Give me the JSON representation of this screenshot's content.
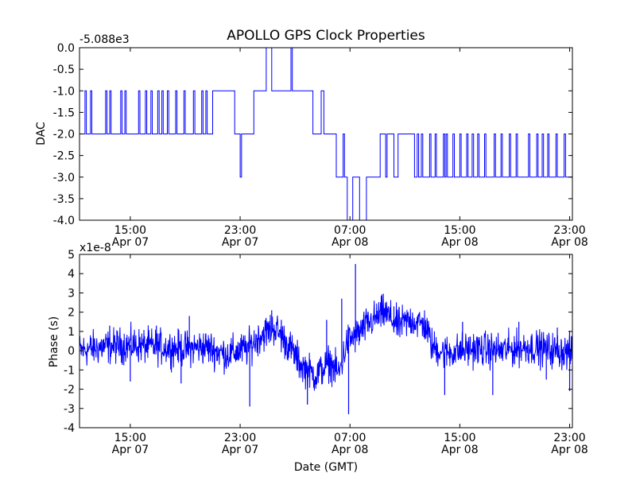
{
  "title": "APOLLO GPS Clock Properties",
  "chart_data": [
    {
      "type": "line",
      "ylabel": "DAC",
      "offset_label": "-5.088e3",
      "ylim": [
        -4.0,
        0.0
      ],
      "yticks": [
        "0.0",
        "-0.5",
        "-1.0",
        "-1.5",
        "-2.0",
        "-2.5",
        "-3.0",
        "-3.5",
        "-4.0"
      ],
      "ytick_values": [
        0,
        -0.5,
        -1,
        -1.5,
        -2,
        -2.5,
        -3,
        -3.5,
        -4
      ],
      "xlim_hours": [
        11.3,
        47.2
      ],
      "xticks_hours": [
        15,
        23,
        31,
        39,
        47
      ],
      "xtick_time": [
        "15:00",
        "23:00",
        "07:00",
        "15:00",
        "23:00"
      ],
      "xtick_date": [
        "Apr 07",
        "Apr 07",
        "Apr 08",
        "Apr 08",
        "Apr 08"
      ],
      "line_color": "#0000ff",
      "series": [
        {
          "name": "DAC",
          "x_hours": [
            11.3,
            11.7,
            11.8,
            12.1,
            12.2,
            13.2,
            13.3,
            13.5,
            13.6,
            14.3,
            14.4,
            14.6,
            14.7,
            15.6,
            15.7,
            16.1,
            16.2,
            16.5,
            16.6,
            17.0,
            17.1,
            17.3,
            17.4,
            17.7,
            17.8,
            18.3,
            18.4,
            18.9,
            19.0,
            19.6,
            19.7,
            20.2,
            20.3,
            20.5,
            20.6,
            21.0,
            21.1,
            22.5,
            22.6,
            22.8,
            23.0,
            23.1,
            23.3,
            23.4,
            23.9,
            24.0,
            24.1,
            24.2,
            24.9,
            25.0,
            25.3,
            26.4,
            26.7,
            26.8,
            27.5,
            27.6,
            28.3,
            28.4,
            28.9,
            29.1,
            29.9,
            30.0,
            30.4,
            30.5,
            30.6,
            30.7,
            30.8,
            31.2,
            31.3,
            31.7,
            32.0,
            32.2,
            33.1,
            33.2,
            33.6,
            33.7,
            33.8,
            34.2,
            34.5,
            35.6,
            35.7,
            35.9,
            36.0,
            36.2,
            36.3,
            36.8,
            36.9,
            37.2,
            37.3,
            37.8,
            37.9,
            38.0,
            38.1,
            38.5,
            38.6,
            39.0,
            39.1,
            39.5,
            39.6,
            39.9,
            40.0,
            40.3,
            40.4,
            40.8,
            40.9,
            41.5,
            41.6,
            42.0,
            42.1,
            42.6,
            42.7,
            43.1,
            43.2,
            44.0,
            44.1,
            44.6,
            44.7,
            45.0,
            45.1,
            45.4,
            45.5,
            46.0,
            46.1,
            46.6,
            46.7,
            47.2
          ],
          "y": [
            -2,
            -1,
            -2,
            -1,
            -2,
            -1,
            -2,
            -1,
            -2,
            -1,
            -2,
            -1,
            -2,
            -1,
            -2,
            -1,
            -2,
            -1,
            -2,
            -1,
            -2,
            -1,
            -2,
            -1,
            -2,
            -1,
            -2,
            -1,
            -2,
            -1,
            -2,
            -1,
            -2,
            -1,
            -2,
            -1,
            -1,
            -1,
            -2,
            -2,
            -3,
            -2,
            -2,
            -2,
            -2,
            -1,
            -1,
            -1,
            0,
            0,
            -1,
            -1,
            0,
            -1,
            -1,
            -1,
            -2,
            -2,
            -1,
            -2,
            -2,
            -3,
            -3,
            -2,
            -3,
            -3,
            -4,
            -3,
            -3,
            -4,
            -4,
            -3,
            -3,
            -2,
            -3,
            -2,
            -2,
            -3,
            -2,
            -2,
            -3,
            -2,
            -3,
            -2,
            -3,
            -2,
            -3,
            -2,
            -3,
            -2,
            -3,
            -2,
            -3,
            -2,
            -3,
            -2,
            -3,
            -2,
            -3,
            -2,
            -3,
            -2,
            -3,
            -2,
            -3,
            -2,
            -3,
            -2,
            -3,
            -2,
            -3,
            -2,
            -3,
            -2,
            -3,
            -2,
            -3,
            -2,
            -3,
            -2,
            -3,
            -2,
            -3,
            -2,
            -3,
            -3
          ]
        }
      ]
    },
    {
      "type": "line",
      "ylabel": "Phase (s)",
      "xlabel": "Date (GMT)",
      "offset_label": "x1e-8",
      "ylim": [
        -4,
        5
      ],
      "yticks": [
        "5",
        "4",
        "3",
        "2",
        "1",
        "0",
        "-1",
        "-2",
        "-3",
        "-4"
      ],
      "ytick_values": [
        5,
        4,
        3,
        2,
        1,
        0,
        -1,
        -2,
        -3,
        -4
      ],
      "xlim_hours": [
        11.3,
        47.2
      ],
      "xticks_hours": [
        15,
        23,
        31,
        39,
        47
      ],
      "xtick_time": [
        "15:00",
        "23:00",
        "07:00",
        "15:00",
        "23:00"
      ],
      "xtick_date": [
        "Apr 07",
        "Apr 07",
        "Apr 08",
        "Apr 08",
        "Apr 08"
      ],
      "line_color": "#0000ff",
      "series": [
        {
          "name": "Phase",
          "trend_x_hours": [
            11.3,
            13,
            15,
            17,
            19,
            20.5,
            22,
            23.5,
            24.5,
            25.5,
            26.5,
            27.5,
            28.5,
            29.5,
            30.2,
            30.8,
            31.5,
            32.5,
            33.5,
            34.5,
            35.5,
            36.5,
            37,
            38,
            40,
            42,
            44,
            46,
            47.2
          ],
          "trend_y": [
            0,
            0.2,
            0.3,
            0.2,
            0.1,
            0.2,
            -0.2,
            0.1,
            0.8,
            1.2,
            0.3,
            -0.8,
            -1.3,
            -0.6,
            -1.2,
            0.5,
            0.8,
            1.5,
            2.0,
            1.3,
            1.6,
            1.3,
            0.2,
            -0.1,
            0.1,
            0.0,
            0.2,
            0.0,
            -0.1
          ],
          "noise_amplitude": 0.45,
          "spikes": [
            {
              "x_hour": 13.5,
              "y": 1.3
            },
            {
              "x_hour": 15.0,
              "y": -1.6
            },
            {
              "x_hour": 16.9,
              "y": 1.3
            },
            {
              "x_hour": 18.7,
              "y": -1.7
            },
            {
              "x_hour": 19.3,
              "y": 1.8
            },
            {
              "x_hour": 23.7,
              "y": -2.9
            },
            {
              "x_hour": 25.3,
              "y": 2.1
            },
            {
              "x_hour": 26.0,
              "y": 1.6
            },
            {
              "x_hour": 27.9,
              "y": -2.8
            },
            {
              "x_hour": 29.3,
              "y": 1.6
            },
            {
              "x_hour": 30.4,
              "y": 2.7
            },
            {
              "x_hour": 30.9,
              "y": -3.3
            },
            {
              "x_hour": 31.4,
              "y": 4.5
            },
            {
              "x_hour": 34.2,
              "y": 2.3
            },
            {
              "x_hour": 35.2,
              "y": 1.5
            },
            {
              "x_hour": 37.9,
              "y": -2.3
            },
            {
              "x_hour": 39.2,
              "y": 1.5
            },
            {
              "x_hour": 41.4,
              "y": -2.3
            },
            {
              "x_hour": 43.3,
              "y": 1.5
            },
            {
              "x_hour": 45.3,
              "y": -1.5
            },
            {
              "x_hour": 46.1,
              "y": 1.2
            },
            {
              "x_hour": 47.0,
              "y": -2.1
            }
          ]
        }
      ]
    }
  ]
}
